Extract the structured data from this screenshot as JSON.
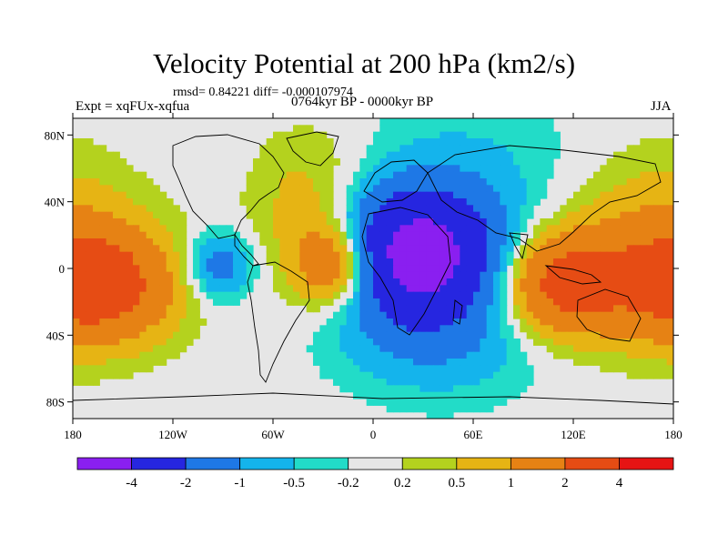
{
  "header": {
    "title": "Velocity Potential at 200 hPa (km2/s)",
    "stats": "rmsd= 0.84221 diff= -0.000107974",
    "experiment": "Expt = xqFUx-xqfua",
    "period": "0764kyr BP - 0000kyr BP",
    "season": "JJA"
  },
  "chart_data": {
    "type": "heatmap",
    "title": "Velocity Potential at 200 hPa (km2/s)",
    "xlabel": "",
    "ylabel": "",
    "xlim": [
      -180,
      180
    ],
    "ylim": [
      -90,
      90
    ],
    "x_ticks": [
      -180,
      -120,
      -60,
      0,
      60,
      120,
      180
    ],
    "x_tick_labels": [
      "180",
      "120W",
      "60W",
      "0",
      "60E",
      "120E",
      "180"
    ],
    "y_ticks": [
      80,
      40,
      0,
      -40,
      -80
    ],
    "y_tick_labels": [
      "80N",
      "40N",
      "0",
      "40S",
      "80S"
    ],
    "colorbar": {
      "levels": [
        -4,
        -2,
        -1,
        -0.5,
        -0.2,
        0.2,
        0.5,
        1,
        2,
        4
      ],
      "level_labels": [
        "-4",
        "-2",
        "-1",
        "-0.5",
        "-0.2",
        "0.2",
        "0.5",
        "1",
        "2",
        "4"
      ],
      "colors": [
        "#8a1ff0",
        "#2626e0",
        "#1e78e6",
        "#14b4ec",
        "#22dcc8",
        "#e6e6e6",
        "#b4d21e",
        "#e6b414",
        "#e68214",
        "#e64c14",
        "#e61414"
      ]
    },
    "features": [
      {
        "label": "minimum over central Africa",
        "lon": 25,
        "lat": 10,
        "value": -4
      },
      {
        "label": "minimum over eastern Pacific",
        "lon": -92,
        "lat": 2,
        "value": -1
      },
      {
        "label": "maximum over tropical Atlantic",
        "lon": -20,
        "lat": 2,
        "value": 2
      },
      {
        "label": "maximum over central Pacific",
        "lon": -165,
        "lat": -10,
        "value": 2
      },
      {
        "label": "maximum over Maritime Continent",
        "lon": 110,
        "lat": -10,
        "value": 2
      }
    ]
  }
}
